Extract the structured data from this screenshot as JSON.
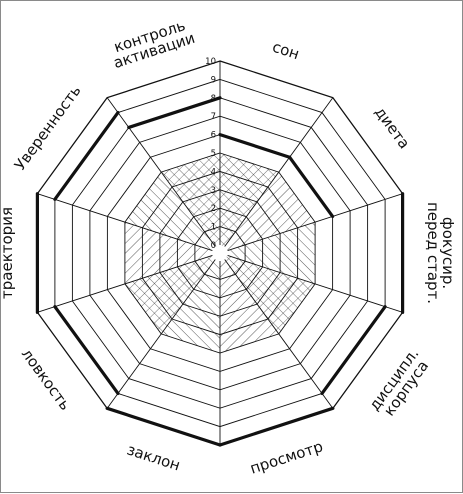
{
  "chart_data": {
    "type": "radar",
    "title": "",
    "scale": {
      "min": 0,
      "max": 10,
      "ticks": [
        "0",
        "1",
        "2",
        "3",
        "4",
        "5",
        "6",
        "7",
        "8",
        "9",
        "10"
      ]
    },
    "sectors": [
      {
        "label": [
          "сон"
        ],
        "value": 6
      },
      {
        "label": [
          "диета"
        ],
        "value": 6
      },
      {
        "label": [
          "фокусир.",
          "перед старт."
        ],
        "value": 10
      },
      {
        "label": [
          "дисципл.",
          "корпуса"
        ],
        "value": 9
      },
      {
        "label": [
          "просмотр"
        ],
        "value": 10
      },
      {
        "label": [
          "заклон"
        ],
        "value": 10
      },
      {
        "label": [
          "ловкость"
        ],
        "value": 9
      },
      {
        "label": [
          "траектория"
        ],
        "value": 10
      },
      {
        "label": [
          "Уверенность"
        ],
        "value": 9
      },
      {
        "label": [
          "контроль",
          "активации"
        ],
        "value": 8
      }
    ]
  },
  "colors": {
    "line": "#111111",
    "background": "#ffffff"
  }
}
